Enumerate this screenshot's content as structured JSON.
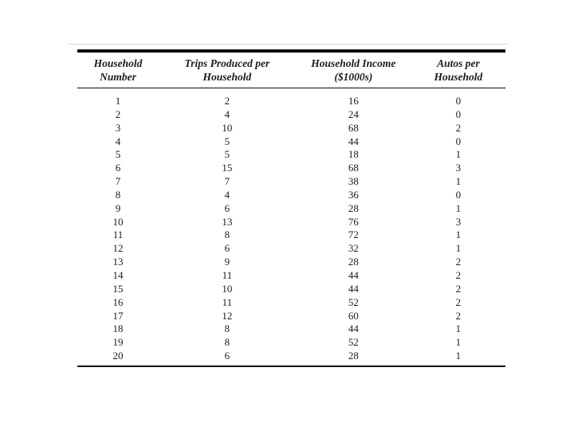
{
  "page": {
    "background": "#ffffff",
    "text_color": "#1c1c1c",
    "rule_color": "#0a0a0a",
    "faint_line_color": "#d9d9d9"
  },
  "table": {
    "headers": [
      {
        "line1": "Household",
        "line2": "Number"
      },
      {
        "line1": "Trips Produced per",
        "line2": "Household"
      },
      {
        "line1": "Household Income",
        "line2": "($1000s)"
      },
      {
        "line1": "Autos per",
        "line2": "Household"
      }
    ],
    "rows": [
      [
        1,
        2,
        16,
        0
      ],
      [
        2,
        4,
        24,
        0
      ],
      [
        3,
        10,
        68,
        2
      ],
      [
        4,
        5,
        44,
        0
      ],
      [
        5,
        5,
        18,
        1
      ],
      [
        6,
        15,
        68,
        3
      ],
      [
        7,
        7,
        38,
        1
      ],
      [
        8,
        4,
        36,
        0
      ],
      [
        9,
        6,
        28,
        1
      ],
      [
        10,
        13,
        76,
        3
      ],
      [
        11,
        8,
        72,
        1
      ],
      [
        12,
        6,
        32,
        1
      ],
      [
        13,
        9,
        28,
        2
      ],
      [
        14,
        11,
        44,
        2
      ],
      [
        15,
        10,
        44,
        2
      ],
      [
        16,
        11,
        52,
        2
      ],
      [
        17,
        12,
        60,
        2
      ],
      [
        18,
        8,
        44,
        1
      ],
      [
        19,
        8,
        52,
        1
      ],
      [
        20,
        6,
        28,
        1
      ]
    ]
  }
}
